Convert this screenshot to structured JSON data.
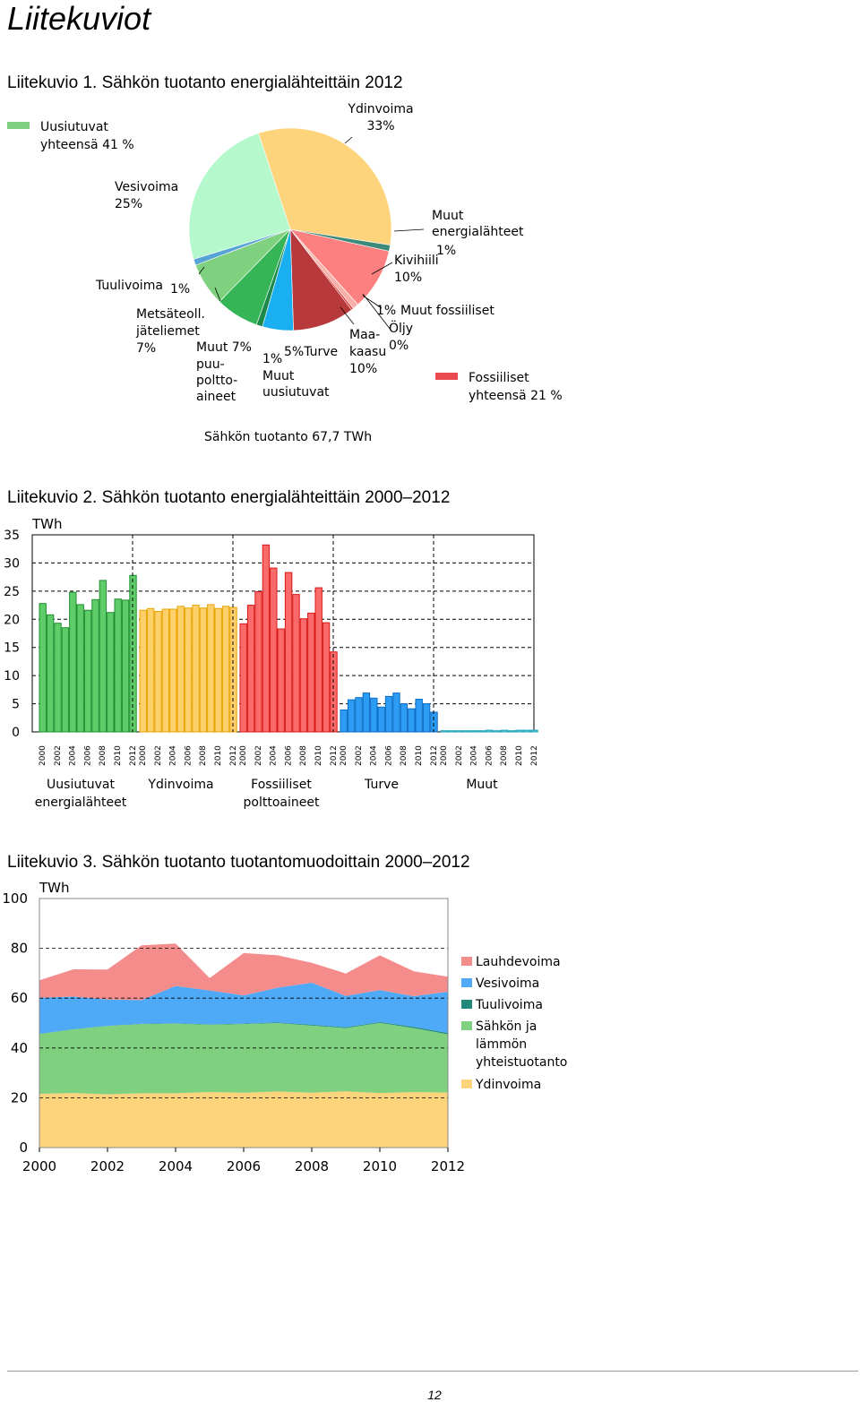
{
  "page": {
    "title": "Liitekuviot",
    "page_number": "12"
  },
  "figures": {
    "fig1": {
      "caption": "Liitekuvio 1. Sähkön tuotanto energialähteittäin 2012"
    },
    "fig2": {
      "caption": "Liitekuvio 2. Sähkön tuotanto energialähteittäin 2000–2012"
    },
    "fig3": {
      "caption": "Liitekuvio 3. Sähkön tuotanto tuotantomuodoittain 2000–2012"
    }
  },
  "chart_data": [
    {
      "type": "pie",
      "footnote": "Sähkön tuotanto 67,7 TWh",
      "legend": [
        {
          "lines": [
            "Uusiutuvat",
            "yhteensä 41 %"
          ],
          "color": "#7fd17f"
        },
        {
          "lines": [
            "Fossiiliset",
            "yhteensä 21 %"
          ],
          "color": "#e84a4f"
        }
      ],
      "slices": [
        {
          "label_lines": [
            "Ydinvoima",
            "33%"
          ],
          "value": 33,
          "color": "#fdd47b"
        },
        {
          "label_lines": [
            "Muut",
            "energialähteet",
            "1%"
          ],
          "value": 1,
          "color": "#3c8a7a"
        },
        {
          "label_lines": [
            "Kivihiili",
            "10%"
          ],
          "value": 10,
          "color": "#fd8080"
        },
        {
          "label_lines": [
            "1%",
            "Muut fossiiliset"
          ],
          "value": 1,
          "color": "#f6b0a8"
        },
        {
          "label_lines": [
            "Öljy",
            "0%"
          ],
          "value": 0.3,
          "color": "#e0201c"
        },
        {
          "label_lines": [
            "Maa-",
            "kaasu",
            "10%"
          ],
          "value": 10,
          "color": "#b8393b"
        },
        {
          "label_lines": [
            "5%Turve"
          ],
          "value": 5,
          "color": "#19aff0"
        },
        {
          "label_lines": [
            "1%",
            "Muut",
            "uusiutuvat"
          ],
          "value": 1,
          "color": "#1d8a4c"
        },
        {
          "label_lines": [
            "Muut  7%",
            "puu-",
            "poltto-",
            "aineet"
          ],
          "value": 7,
          "color": "#35b555"
        },
        {
          "label_lines": [
            "Metsäteoll.",
            "jäteliemet",
            "7%"
          ],
          "value": 7,
          "color": "#7fd17f"
        },
        {
          "label_lines": [
            "Tuulivoima",
            "1%"
          ],
          "value": 1,
          "color": "#58a3d6"
        },
        {
          "label_lines": [
            "Vesivoima",
            "25%"
          ],
          "value": 25,
          "color": "#b4f8cc"
        }
      ]
    },
    {
      "type": "bar",
      "ylabel": "TWh",
      "ylim": [
        0,
        35
      ],
      "yticks": [
        "0",
        "5",
        "10",
        "15",
        "20",
        "25",
        "30",
        "35"
      ],
      "grid": true,
      "years": [
        "2000",
        "2001",
        "2002",
        "2003",
        "2004",
        "2005",
        "2006",
        "2007",
        "2008",
        "2009",
        "2010",
        "2011",
        "2012"
      ],
      "year_tick_labels": [
        "2000",
        "2002",
        "2004",
        "2006",
        "2008",
        "2010",
        "2012"
      ],
      "groups": [
        {
          "name_lines": [
            "Uusiutuvat",
            "energialähteet"
          ],
          "color": "#5fcc6a",
          "stroke": "#1f8f30",
          "values": [
            22.8,
            20.8,
            19.3,
            18.5,
            24.8,
            22.6,
            21.6,
            23.5,
            26.9,
            21.2,
            23.6,
            23.4,
            27.8
          ]
        },
        {
          "name_lines": [
            "Ydinvoima"
          ],
          "color": "#fdd06b",
          "stroke": "#e7a400",
          "values": [
            21.6,
            21.9,
            21.4,
            21.8,
            21.8,
            22.3,
            22.0,
            22.5,
            22.0,
            22.6,
            21.9,
            22.3,
            22.1
          ]
        },
        {
          "name_lines": [
            "Fossiiliset",
            "polttoaineet"
          ],
          "color": "#fb6a6a",
          "stroke": "#d81818",
          "values": [
            19.2,
            22.5,
            24.9,
            33.2,
            29.1,
            18.3,
            28.3,
            24.4,
            20.1,
            21.1,
            25.6,
            19.4,
            14.2
          ]
        },
        {
          "name_lines": [
            "Turve"
          ],
          "color": "#2d9cf5",
          "stroke": "#0a6cc4",
          "values": [
            3.9,
            5.7,
            6.1,
            6.9,
            6.0,
            4.4,
            6.3,
            6.9,
            5.0,
            4.1,
            5.8,
            5.0,
            3.5
          ]
        },
        {
          "name_lines": [
            "Muut"
          ],
          "color": "#5ed0e0",
          "stroke": "#1ea0b5",
          "values": [
            0.2,
            0.2,
            0.2,
            0.2,
            0.2,
            0.2,
            0.3,
            0.2,
            0.3,
            0.2,
            0.3,
            0.3,
            0.3
          ]
        }
      ]
    },
    {
      "type": "area",
      "ylabel": "TWh",
      "ylim": [
        0,
        100
      ],
      "yticks": [
        "0",
        "20",
        "40",
        "60",
        "80",
        "100"
      ],
      "xticks": [
        "2000",
        "2002",
        "2004",
        "2006",
        "2008",
        "2010",
        "2012"
      ],
      "grid": true,
      "legend_position": "right",
      "x": [
        2000,
        2001,
        2002,
        2003,
        2004,
        2005,
        2006,
        2007,
        2008,
        2009,
        2010,
        2011,
        2012
      ],
      "series": [
        {
          "name": "Ydinvoima",
          "color": "#fdd47b",
          "values": [
            21.6,
            21.9,
            21.4,
            21.8,
            21.8,
            22.3,
            22.0,
            22.5,
            22.0,
            22.6,
            21.9,
            22.3,
            22.1
          ]
        },
        {
          "name": "Sähkön ja lämmön yhteistuotanto",
          "color": "#7fd17f",
          "values": [
            24.0,
            25.6,
            27.4,
            27.8,
            28.0,
            27.0,
            27.6,
            27.5,
            27.0,
            25.4,
            28.2,
            25.7,
            23.4
          ]
        },
        {
          "name": "Tuulivoima",
          "color": "#1f8a7a",
          "values": [
            0.1,
            0.1,
            0.1,
            0.1,
            0.1,
            0.2,
            0.2,
            0.2,
            0.3,
            0.3,
            0.3,
            0.5,
            0.5
          ]
        },
        {
          "name": "Vesivoima",
          "color": "#4ea9f7",
          "values": [
            14.5,
            13.0,
            10.6,
            9.5,
            15.0,
            13.6,
            11.3,
            14.0,
            16.9,
            12.6,
            12.8,
            12.3,
            16.6
          ]
        },
        {
          "name": "Lauhdevoima",
          "color": "#f58c8c",
          "values": [
            7.0,
            11.0,
            12.0,
            22.0,
            17.0,
            5.0,
            17.0,
            13.0,
            8.0,
            9.0,
            14.0,
            10.0,
            6.0
          ]
        }
      ],
      "legend_order": [
        {
          "lines": [
            "Lauhdevoima"
          ],
          "color": "#f58c8c"
        },
        {
          "lines": [
            "Vesivoima"
          ],
          "color": "#4ea9f7"
        },
        {
          "lines": [
            "Tuulivoima"
          ],
          "color": "#1f8a7a"
        },
        {
          "lines": [
            "Sähkön ja",
            "lämmön",
            "yhteistuotanto"
          ],
          "color": "#7fd17f"
        },
        {
          "lines": [
            "Ydinvoima"
          ],
          "color": "#fdd47b"
        }
      ]
    }
  ]
}
